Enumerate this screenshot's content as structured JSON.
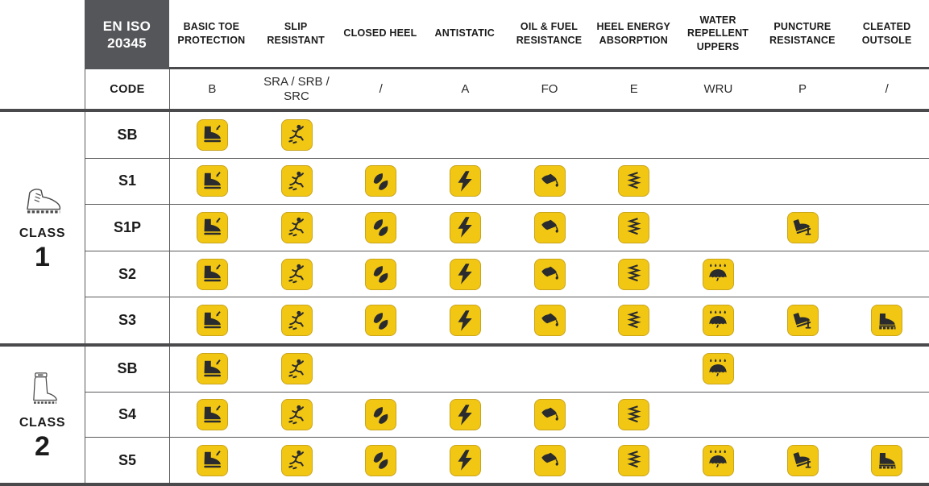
{
  "standard": {
    "title": "EN ISO 20345"
  },
  "code_row": {
    "label": "CODE"
  },
  "columns": [
    {
      "label": "BASIC TOE PROTECTION",
      "code": "B",
      "icon": "toe-protection"
    },
    {
      "label": "SLIP RESISTANT",
      "code": "SRA / SRB / SRC",
      "icon": "slip-resistant"
    },
    {
      "label": "CLOSED HEEL",
      "code": "/",
      "icon": "closed-heel"
    },
    {
      "label": "ANTISTATIC",
      "code": "A",
      "icon": "antistatic"
    },
    {
      "label": "OIL & FUEL RESISTANCE",
      "code": "FO",
      "icon": "oil-fuel-resistance"
    },
    {
      "label": "HEEL ENERGY ABSORPTION",
      "code": "E",
      "icon": "heel-energy-absorption"
    },
    {
      "label": "WATER REPELLENT UPPERS",
      "code": "WRU",
      "icon": "water-repellent-uppers"
    },
    {
      "label": "PUNCTURE RESISTANCE",
      "code": "P",
      "icon": "puncture-resistance"
    },
    {
      "label": "CLEATED OUTSOLE",
      "code": "/",
      "icon": "cleated-outsole"
    }
  ],
  "classes": [
    {
      "label": "CLASS",
      "number": "1",
      "icon": "class-1-leather-boot",
      "rows": [
        {
          "code": "SB",
          "features": [
            1,
            1,
            0,
            0,
            0,
            0,
            0,
            0,
            0
          ]
        },
        {
          "code": "S1",
          "features": [
            1,
            1,
            1,
            1,
            1,
            1,
            0,
            0,
            0
          ]
        },
        {
          "code": "S1P",
          "features": [
            1,
            1,
            1,
            1,
            1,
            1,
            0,
            1,
            0
          ]
        },
        {
          "code": "S2",
          "features": [
            1,
            1,
            1,
            1,
            1,
            1,
            1,
            0,
            0
          ]
        },
        {
          "code": "S3",
          "features": [
            1,
            1,
            1,
            1,
            1,
            1,
            1,
            1,
            1
          ]
        }
      ]
    },
    {
      "label": "CLASS",
      "number": "2",
      "icon": "class-2-rubber-boot",
      "rows": [
        {
          "code": "SB",
          "features": [
            1,
            1,
            0,
            0,
            0,
            0,
            1,
            0,
            0
          ]
        },
        {
          "code": "S4",
          "features": [
            1,
            1,
            1,
            1,
            1,
            1,
            0,
            0,
            0
          ]
        },
        {
          "code": "S5",
          "features": [
            1,
            1,
            1,
            1,
            1,
            1,
            1,
            1,
            1
          ]
        }
      ]
    }
  ],
  "colors": {
    "icon_yellow": "#F2C713",
    "icon_border": "#C9A41B",
    "glyph": "#2A2B2E",
    "header_box_bg": "#55565A",
    "header_box_text": "#FFFFFF",
    "heavy_rule": "#4A4A4C",
    "thin_rule": "#5B5B5E",
    "text": "#1B1B1C"
  }
}
